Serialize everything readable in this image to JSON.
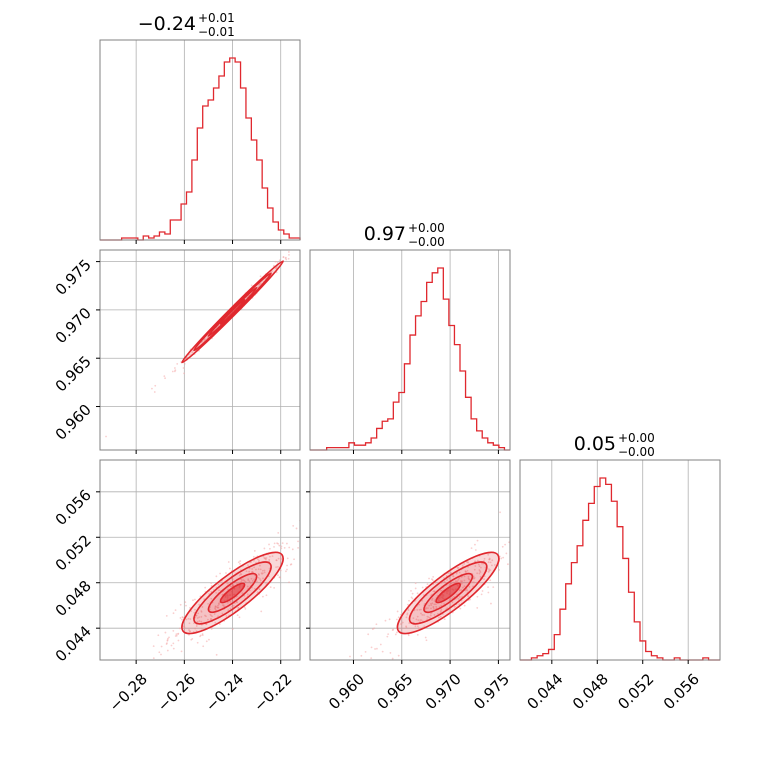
{
  "chart_data": {
    "type": "corner",
    "color": "#e0282e",
    "light_color": "#f4a8a8",
    "grid": true,
    "titles": [
      {
        "main": "−0.24",
        "sup": "+0.01",
        "sub": "−0.01"
      },
      {
        "main": "0.97",
        "sup": "+0.00",
        "sub": "−0.00"
      },
      {
        "main": "0.05",
        "sup": "+0.00",
        "sub": "−0.00"
      }
    ],
    "parameters": [
      {
        "range": [
          -0.295,
          -0.212
        ],
        "ticks": [
          -0.28,
          -0.26,
          -0.24,
          -0.22
        ],
        "tick_labels": [
          "−0.28",
          "−0.26",
          "−0.24",
          "−0.22"
        ]
      },
      {
        "range": [
          0.9555,
          0.9762
        ],
        "ticks": [
          0.96,
          0.965,
          0.97,
          0.975
        ],
        "tick_labels": [
          "0.960",
          "0.965",
          "0.970",
          "0.975"
        ]
      },
      {
        "range": [
          0.0412,
          0.0588
        ],
        "ticks": [
          0.044,
          0.048,
          0.052,
          0.056
        ],
        "tick_labels": [
          "0.044",
          "0.048",
          "0.052",
          "0.056"
        ]
      }
    ],
    "histograms": [
      {
        "counts": [
          0,
          0,
          0,
          0,
          1,
          1,
          1,
          0,
          2,
          1,
          2,
          4,
          3,
          10,
          10,
          18,
          24,
          40,
          56,
          67,
          70,
          76,
          82,
          89,
          91,
          89,
          76,
          61,
          50,
          40,
          26,
          16,
          9,
          5,
          3,
          1,
          1
        ]
      },
      {
        "counts": [
          0,
          0,
          0,
          1,
          1,
          1,
          1,
          3,
          2,
          2,
          3,
          5,
          9,
          12,
          13,
          20,
          24,
          36,
          48,
          56,
          62,
          70,
          74,
          76,
          63,
          52,
          44,
          33,
          22,
          13,
          8,
          5,
          3,
          2,
          1,
          0
        ]
      },
      {
        "counts": [
          0,
          0,
          1,
          2,
          3,
          5,
          12,
          24,
          36,
          46,
          54,
          66,
          74,
          82,
          86,
          83,
          75,
          63,
          48,
          32,
          18,
          9,
          4,
          2,
          1,
          0,
          0,
          1,
          0,
          0,
          0,
          0,
          1,
          0,
          0
        ]
      }
    ],
    "pair_panels": [
      {
        "x_param": 0,
        "y_param": 1,
        "correlation": 0.995
      },
      {
        "x_param": 0,
        "y_param": 2,
        "correlation": 0.85
      },
      {
        "x_param": 1,
        "y_param": 2,
        "correlation": 0.85
      }
    ],
    "centers": [
      -0.24,
      0.9698,
      0.0471
    ],
    "spreads": [
      0.01,
      0.0025,
      0.0017
    ]
  }
}
